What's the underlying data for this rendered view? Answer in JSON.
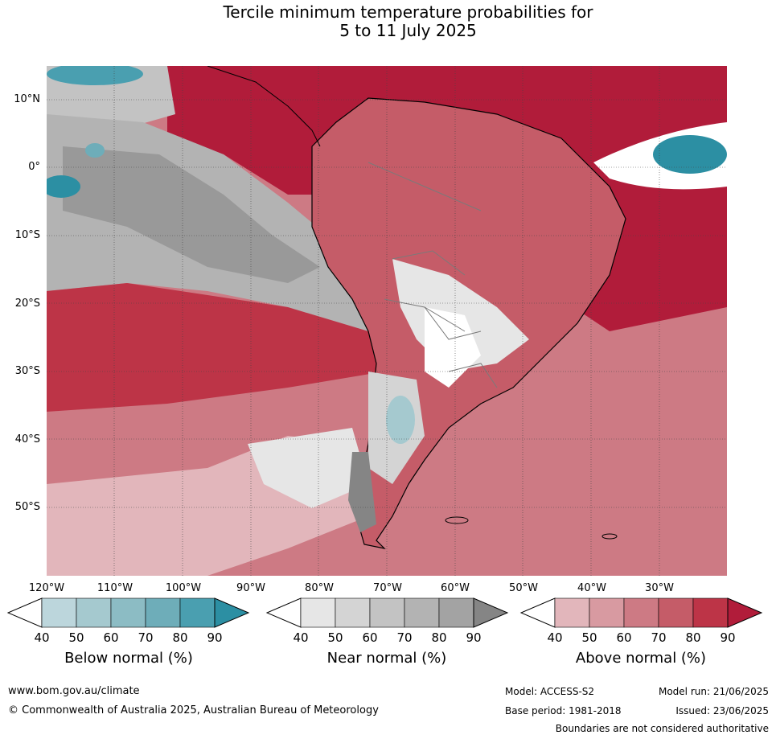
{
  "title_line1": "Tercile minimum temperature probabilities for",
  "title_line2": "5 to 11 July 2025",
  "lat_labels": [
    "10°N",
    "0°",
    "10°S",
    "20°S",
    "30°S",
    "40°S",
    "50°S"
  ],
  "lon_labels": [
    "120°W",
    "110°W",
    "100°W",
    "90°W",
    "80°W",
    "70°W",
    "60°W",
    "50°W",
    "40°W",
    "30°W"
  ],
  "colorbars": [
    {
      "title": "Below normal (%)",
      "ticks": [
        "40",
        "50",
        "60",
        "70",
        "80",
        "90"
      ],
      "colors": [
        "#ffffff",
        "#bcd6dc",
        "#a5c9cf",
        "#8cbcc4",
        "#6eadb9",
        "#4a9fb0",
        "#2c8fa3"
      ]
    },
    {
      "title": "Near normal (%)",
      "ticks": [
        "40",
        "50",
        "60",
        "70",
        "80",
        "90"
      ],
      "colors": [
        "#ffffff",
        "#e6e6e6",
        "#d4d4d4",
        "#c3c3c3",
        "#b3b3b3",
        "#a3a3a3",
        "#858585"
      ]
    },
    {
      "title": "Above normal (%)",
      "ticks": [
        "40",
        "50",
        "60",
        "70",
        "80",
        "90"
      ],
      "colors": [
        "#ffffff",
        "#e2b6bb",
        "#d89aa1",
        "#cd7a84",
        "#c55c68",
        "#bd3447",
        "#b11c3a"
      ]
    }
  ],
  "footer": {
    "website": "www.bom.gov.au/climate",
    "copyright": "© Commonwealth of Australia 2025, Australian Bureau of Meteorology",
    "model": "Model: ACCESS-S2",
    "base_period": "Base period: 1981-2018",
    "model_run": "Model run: 21/06/2025",
    "issued": "Issued: 23/06/2025",
    "disclaimer": "Boundaries are not considered authoritative"
  }
}
